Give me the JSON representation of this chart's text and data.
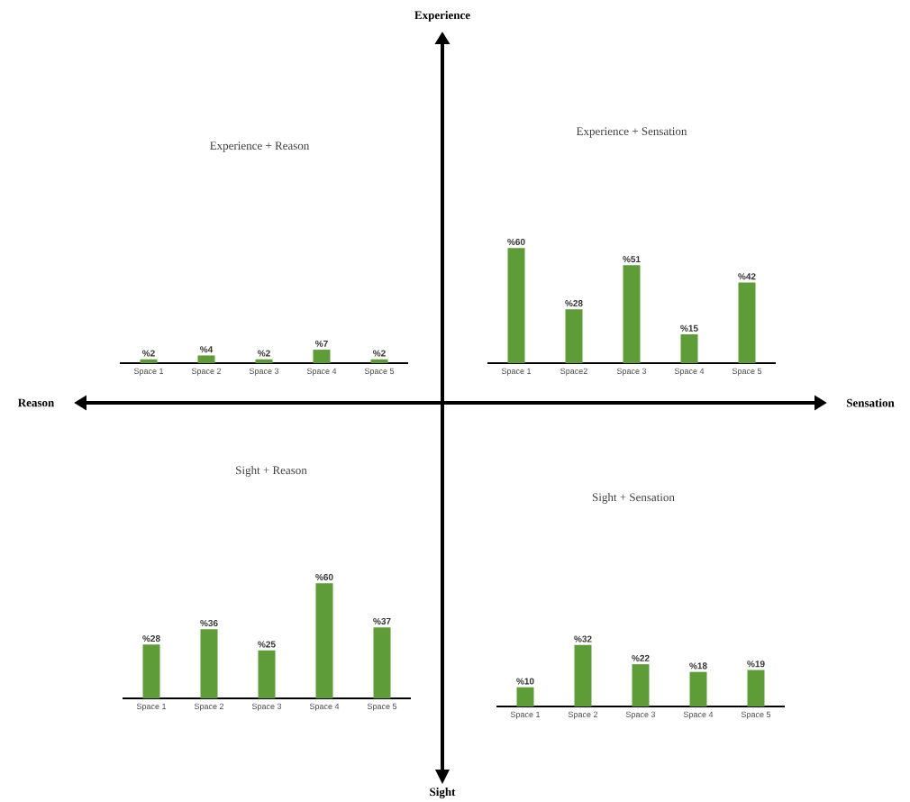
{
  "chart_data": [
    {
      "type": "bar",
      "title": "Experience + Reason",
      "categories": [
        "Space 1",
        "Space 2",
        "Space 3",
        "Space 4",
        "Space 5"
      ],
      "values": [
        2,
        4,
        2,
        7,
        2
      ],
      "value_labels": [
        "%2",
        "%4",
        "%2",
        "%7",
        "%2"
      ],
      "color": "#5e9c38"
    },
    {
      "type": "bar",
      "title": "Experience + Sensation",
      "categories": [
        "Space 1",
        "Space2",
        "Space 3",
        "Space 4",
        "Space 5"
      ],
      "values": [
        60,
        28,
        51,
        15,
        42
      ],
      "value_labels": [
        "%60",
        "%28",
        "%51",
        "%15",
        "%42"
      ],
      "color": "#5e9c38"
    },
    {
      "type": "bar",
      "title": "Sight + Reason",
      "categories": [
        "Space 1",
        "Space 2",
        "Space 3",
        "Space 4",
        "Space 5"
      ],
      "values": [
        28,
        36,
        25,
        60,
        37
      ],
      "value_labels": [
        "%28",
        "%36",
        "%25",
        "%60",
        "%37"
      ],
      "color": "#5e9c38"
    },
    {
      "type": "bar",
      "title": "Sight + Sensation",
      "categories": [
        "Space 1",
        "Space 2",
        "Space 3",
        "Space 4",
        "Space 5"
      ],
      "values": [
        10,
        32,
        22,
        18,
        19
      ],
      "value_labels": [
        "%10",
        "%32",
        "%22",
        "%18",
        "%19"
      ],
      "color": "#5e9c38"
    },
    {
      "type": "other",
      "annotations": [
        "Experience",
        "Sensation",
        "Sight",
        "Reason"
      ]
    }
  ]
}
